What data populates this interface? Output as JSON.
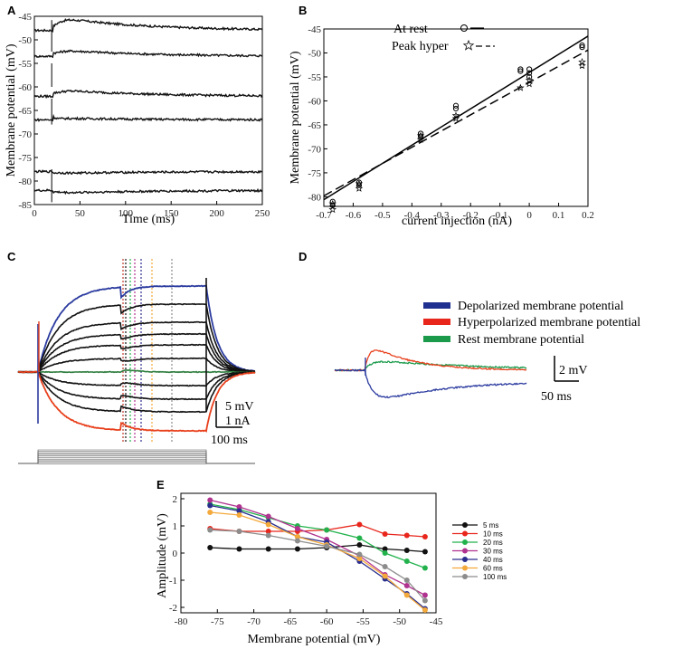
{
  "panels": {
    "A": {
      "label": "A",
      "chart_data": {
        "type": "line",
        "xlabel": "Time (ms)",
        "ylabel": "Membrane potential (mV)",
        "xlim": [
          0,
          250
        ],
        "ylim": [
          -85,
          -45
        ],
        "xticks": [
          0,
          50,
          100,
          150,
          200,
          250
        ],
        "yticks": [
          -45,
          -50,
          -55,
          -60,
          -65,
          -70,
          -75,
          -80,
          -85
        ],
        "stimulus_time": 20,
        "series": [
          {
            "baseline": -48.0,
            "response": 3.0
          },
          {
            "baseline": -53.5,
            "response": 1.5
          },
          {
            "baseline": -62.0,
            "response": 1.5
          },
          {
            "baseline": -67.0,
            "response": 0.4
          },
          {
            "baseline": -78.0,
            "response": -0.4
          },
          {
            "baseline": -82.0,
            "response": -0.6
          }
        ]
      }
    },
    "B": {
      "label": "B",
      "chart_data": {
        "type": "scatter",
        "xlabel": "current injection (nA)",
        "ylabel": "Membrane potential (mV)",
        "xlim": [
          -0.7,
          0.2
        ],
        "ylim": [
          -82,
          -45
        ],
        "xticks": [
          -0.7,
          -0.6,
          -0.5,
          -0.4,
          -0.3,
          -0.2,
          -0.1,
          0,
          0.1,
          0.2
        ],
        "yticks": [
          -45,
          -50,
          -55,
          -60,
          -65,
          -70,
          -75,
          -80
        ],
        "legend": [
          {
            "name": "At rest",
            "marker": "circle",
            "line": "solid"
          },
          {
            "name": "Peak hyper",
            "marker": "star",
            "line": "dashed"
          }
        ],
        "series": [
          {
            "name": "At rest",
            "x": [
              -0.67,
              -0.67,
              -0.58,
              -0.58,
              -0.37,
              -0.37,
              -0.25,
              -0.25,
              -0.03,
              -0.03,
              0.0,
              0.0,
              0.0,
              0.18,
              0.18
            ],
            "y": [
              -81.8,
              -81.0,
              -77.6,
              -77.0,
              -67.4,
              -66.8,
              -61.6,
              -61.0,
              -53.8,
              -53.4,
              -55.0,
              -54.2,
              -53.4,
              -48.8,
              -48.4
            ]
          },
          {
            "name": "Peak hyper",
            "x": [
              -0.67,
              -0.67,
              -0.58,
              -0.58,
              -0.37,
              -0.37,
              -0.25,
              -0.25,
              -0.03,
              0.0,
              0.0,
              0.18,
              0.18
            ],
            "y": [
              -82.6,
              -81.4,
              -78.2,
              -77.2,
              -68.0,
              -67.2,
              -63.6,
              -63.0,
              -57.2,
              -56.4,
              -55.6,
              -52.6,
              -51.8
            ]
          }
        ],
        "fits": [
          {
            "name": "At rest",
            "x": [
              -0.7,
              0.2
            ],
            "y": [
              -80.6,
              -46.5
            ]
          },
          {
            "name": "Peak hyper",
            "x": [
              -0.7,
              0.2
            ],
            "y": [
              -79.8,
              -49.4
            ]
          }
        ]
      }
    },
    "C": {
      "label": "C",
      "scale_mv": "5 mV",
      "scale_na": "1 nA",
      "scale_ms": "100 ms"
    },
    "D": {
      "label": "D",
      "legend": [
        {
          "name": "Depolarized membrane potential",
          "color": "#1f2f8f"
        },
        {
          "name": "Hyperpolarized membrane potential",
          "color": "#e8261c"
        },
        {
          "name": "Rest membrane potential",
          "color": "#1a9a4a"
        }
      ],
      "scale_mv": "2 mV",
      "scale_ms": "50 ms"
    },
    "E": {
      "label": "E",
      "chart_data": {
        "type": "line",
        "xlabel": "Membrane potential (mV)",
        "ylabel": "Amplitude (mV)",
        "xlim": [
          -80,
          -45
        ],
        "ylim": [
          -2.2,
          2.2
        ],
        "xticks": [
          -80,
          -75,
          -70,
          -65,
          -60,
          -55,
          -50,
          -45
        ],
        "yticks": [
          -2,
          -1,
          0,
          1,
          2
        ],
        "series": [
          {
            "name": "5 ms",
            "color": "#111111",
            "x": [
              -76,
              -72,
              -68,
              -64,
              -60,
              -55.5,
              -52,
              -49,
              -46.5
            ],
            "y": [
              0.2,
              0.15,
              0.15,
              0.15,
              0.2,
              0.3,
              0.15,
              0.1,
              0.05
            ]
          },
          {
            "name": "10 ms",
            "color": "#e8261c",
            "x": [
              -76,
              -72,
              -68,
              -64,
              -60,
              -55.5,
              -52,
              -49,
              -46.5
            ],
            "y": [
              0.9,
              0.8,
              0.8,
              0.8,
              0.85,
              1.05,
              0.7,
              0.65,
              0.6
            ]
          },
          {
            "name": "20 ms",
            "color": "#22b24c",
            "x": [
              -76,
              -72,
              -68,
              -64,
              -60,
              -55.5,
              -52,
              -49,
              -46.5
            ],
            "y": [
              1.8,
              1.6,
              1.3,
              1.0,
              0.85,
              0.55,
              0.0,
              -0.3,
              -0.55
            ]
          },
          {
            "name": "30 ms",
            "color": "#b0338f",
            "x": [
              -76,
              -72,
              -68,
              -64,
              -60,
              -55.5,
              -52,
              -49,
              -46.5
            ],
            "y": [
              1.95,
              1.7,
              1.35,
              0.9,
              0.5,
              -0.1,
              -0.8,
              -1.2,
              -1.55
            ]
          },
          {
            "name": "40 ms",
            "color": "#2a2f8e",
            "x": [
              -76,
              -72,
              -68,
              -64,
              -60,
              -55.5,
              -52,
              -49,
              -46.5
            ],
            "y": [
              1.75,
              1.55,
              1.15,
              0.6,
              0.4,
              -0.3,
              -0.95,
              -1.5,
              -2.05
            ]
          },
          {
            "name": "60 ms",
            "color": "#f4a93b",
            "x": [
              -76,
              -72,
              -68,
              -64,
              -60,
              -55.5,
              -52,
              -49,
              -46.5
            ],
            "y": [
              1.5,
              1.4,
              1.05,
              0.6,
              0.3,
              -0.2,
              -0.85,
              -1.55,
              -2.1
            ]
          },
          {
            "name": "100 ms",
            "color": "#8c8c8c",
            "x": [
              -76,
              -72,
              -68,
              -64,
              -60,
              -55.5,
              -52,
              -49,
              -46.5
            ],
            "y": [
              0.85,
              0.8,
              0.65,
              0.45,
              0.25,
              -0.05,
              -0.5,
              -1.0,
              -1.75
            ]
          }
        ]
      }
    }
  }
}
